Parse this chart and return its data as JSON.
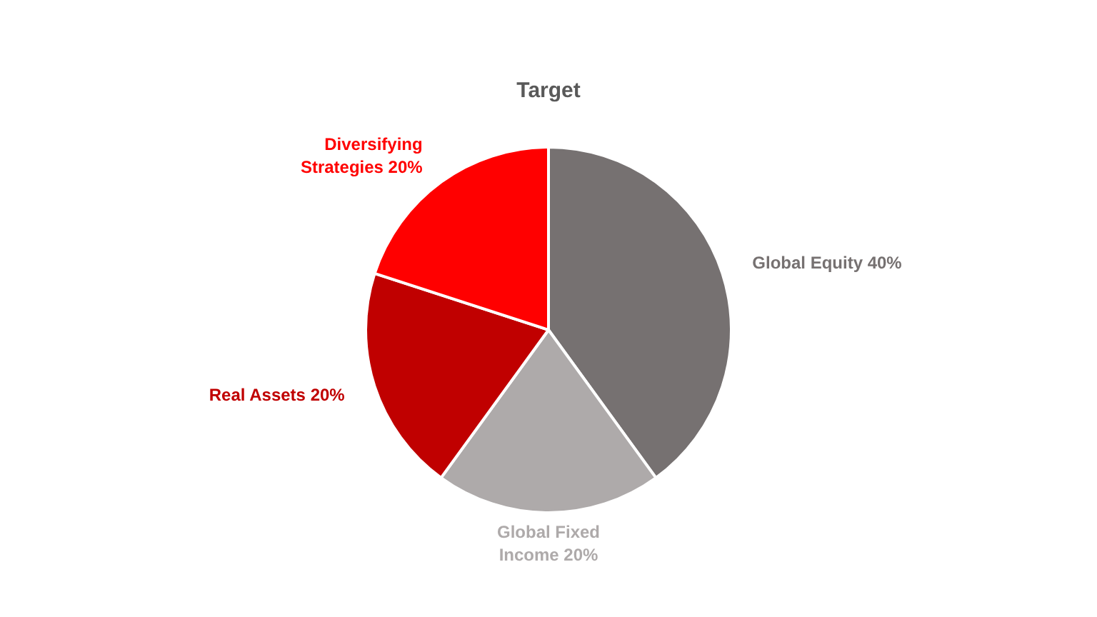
{
  "chart_data": {
    "type": "pie",
    "title": "Target",
    "categories": [
      "Global Equity",
      "Global Fixed Income",
      "Real Assets",
      "Diversifying Strategies"
    ],
    "values": [
      40,
      20,
      20,
      20
    ],
    "value_labels": [
      "40%",
      "20%",
      "20%",
      "20%"
    ],
    "colors": [
      "#767171",
      "#aeaaaa",
      "#c00000",
      "#ff0000"
    ],
    "legend": false
  }
}
